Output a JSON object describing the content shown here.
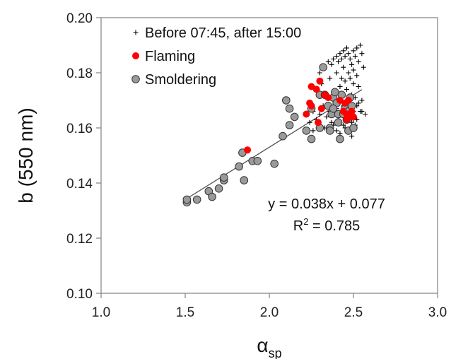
{
  "chart_data": {
    "type": "scatter",
    "title": "",
    "xlabel": "α",
    "xlabel_sub": "sp",
    "ylabel": "b (550 nm)",
    "xlim": [
      1.0,
      3.0
    ],
    "ylim": [
      0.1,
      0.2
    ],
    "xticks": [
      "1.0",
      "1.5",
      "2.0",
      "2.5",
      "3.0"
    ],
    "yticks": [
      "0.10",
      "0.12",
      "0.14",
      "0.16",
      "0.18",
      "0.20"
    ],
    "grid": false,
    "legend_position": "top-left",
    "fit": {
      "slope": 0.038,
      "intercept": 0.077,
      "x_range": [
        1.5,
        2.55
      ],
      "equation": "y = 0.038x + 0.077",
      "r2_label": "R",
      "r2_sup": "2",
      "r2_value": " = 0.785"
    },
    "series": [
      {
        "name": "Before 07:45, after 15:00",
        "marker": "plus",
        "color": "#000000",
        "points": [
          [
            2.3,
            0.18
          ],
          [
            2.33,
            0.182
          ],
          [
            2.35,
            0.184
          ],
          [
            2.37,
            0.183
          ],
          [
            2.38,
            0.185
          ],
          [
            2.4,
            0.186
          ],
          [
            2.41,
            0.184
          ],
          [
            2.42,
            0.187
          ],
          [
            2.43,
            0.185
          ],
          [
            2.44,
            0.188
          ],
          [
            2.45,
            0.186
          ],
          [
            2.46,
            0.189
          ],
          [
            2.47,
            0.187
          ],
          [
            2.48,
            0.185
          ],
          [
            2.49,
            0.183
          ],
          [
            2.5,
            0.188
          ],
          [
            2.51,
            0.186
          ],
          [
            2.52,
            0.189
          ],
          [
            2.53,
            0.184
          ],
          [
            2.54,
            0.19
          ],
          [
            2.56,
            0.182
          ],
          [
            2.55,
            0.187
          ],
          [
            2.44,
            0.182
          ],
          [
            2.47,
            0.18
          ],
          [
            2.5,
            0.181
          ],
          [
            2.52,
            0.179
          ],
          [
            2.48,
            0.178
          ],
          [
            2.45,
            0.177
          ],
          [
            2.5,
            0.176
          ],
          [
            2.42,
            0.175
          ],
          [
            2.53,
            0.175
          ],
          [
            2.46,
            0.174
          ],
          [
            2.49,
            0.172
          ],
          [
            2.51,
            0.171
          ],
          [
            2.43,
            0.171
          ],
          [
            2.55,
            0.17
          ],
          [
            2.47,
            0.169
          ],
          [
            2.52,
            0.168
          ],
          [
            2.44,
            0.168
          ],
          [
            2.4,
            0.167
          ],
          [
            2.5,
            0.166
          ],
          [
            2.54,
            0.166
          ],
          [
            2.57,
            0.165
          ],
          [
            2.46,
            0.165
          ],
          [
            2.48,
            0.164
          ],
          [
            2.41,
            0.163
          ],
          [
            2.49,
            0.162
          ],
          [
            2.51,
            0.161
          ],
          [
            2.45,
            0.16
          ],
          [
            2.38,
            0.161
          ],
          [
            2.47,
            0.159
          ],
          [
            2.49,
            0.157
          ],
          [
            2.42,
            0.158
          ],
          [
            2.5,
            0.163
          ],
          [
            2.36,
            0.166
          ],
          [
            2.34,
            0.164
          ],
          [
            2.38,
            0.17
          ],
          [
            2.39,
            0.173
          ],
          [
            2.35,
            0.171
          ],
          [
            2.32,
            0.168
          ],
          [
            2.3,
            0.165
          ],
          [
            2.28,
            0.163
          ],
          [
            2.26,
            0.166
          ],
          [
            2.24,
            0.162
          ],
          [
            2.22,
            0.165
          ],
          [
            2.29,
            0.172
          ],
          [
            2.31,
            0.176
          ],
          [
            2.36,
            0.178
          ],
          [
            2.4,
            0.18
          ],
          [
            2.43,
            0.178
          ],
          [
            2.53,
            0.169
          ],
          [
            2.55,
            0.166
          ],
          [
            2.52,
            0.163
          ],
          [
            2.44,
            0.161
          ],
          [
            2.4,
            0.159
          ],
          [
            2.37,
            0.162
          ],
          [
            2.33,
            0.16
          ],
          [
            2.26,
            0.159
          ]
        ]
      },
      {
        "name": "Flaming",
        "marker": "circle",
        "color": "#ff0000",
        "points": [
          [
            1.87,
            0.152
          ],
          [
            2.22,
            0.165
          ],
          [
            2.24,
            0.169
          ],
          [
            2.25,
            0.168
          ],
          [
            2.25,
            0.175
          ],
          [
            2.28,
            0.174
          ],
          [
            2.3,
            0.177
          ],
          [
            2.31,
            0.167
          ],
          [
            2.33,
            0.172
          ],
          [
            2.35,
            0.171
          ],
          [
            2.42,
            0.17
          ],
          [
            2.44,
            0.166
          ],
          [
            2.45,
            0.169
          ],
          [
            2.46,
            0.165
          ],
          [
            2.46,
            0.163
          ],
          [
            2.47,
            0.17
          ],
          [
            2.48,
            0.164
          ],
          [
            2.49,
            0.166
          ],
          [
            2.5,
            0.164
          ],
          [
            2.29,
            0.162
          ]
        ]
      },
      {
        "name": "Smoldering",
        "marker": "circle",
        "color": "#9a9a9a",
        "points": [
          [
            1.51,
            0.133
          ],
          [
            1.51,
            0.134
          ],
          [
            1.57,
            0.134
          ],
          [
            1.64,
            0.137
          ],
          [
            1.66,
            0.135
          ],
          [
            1.7,
            0.138
          ],
          [
            1.73,
            0.141
          ],
          [
            1.73,
            0.142
          ],
          [
            1.82,
            0.146
          ],
          [
            1.84,
            0.151
          ],
          [
            1.85,
            0.141
          ],
          [
            1.9,
            0.148
          ],
          [
            1.93,
            0.148
          ],
          [
            2.03,
            0.147
          ],
          [
            2.08,
            0.157
          ],
          [
            2.1,
            0.17
          ],
          [
            2.12,
            0.167
          ],
          [
            2.12,
            0.161
          ],
          [
            2.15,
            0.164
          ],
          [
            2.22,
            0.159
          ],
          [
            2.25,
            0.156
          ],
          [
            2.25,
            0.167
          ],
          [
            2.3,
            0.16
          ],
          [
            2.3,
            0.172
          ],
          [
            2.32,
            0.182
          ],
          [
            2.33,
            0.172
          ],
          [
            2.35,
            0.168
          ],
          [
            2.36,
            0.16
          ],
          [
            2.37,
            0.165
          ],
          [
            2.38,
            0.171
          ],
          [
            2.39,
            0.173
          ],
          [
            2.4,
            0.169
          ],
          [
            2.41,
            0.165
          ],
          [
            2.41,
            0.162
          ],
          [
            2.42,
            0.156
          ],
          [
            2.43,
            0.172
          ],
          [
            2.44,
            0.165
          ],
          [
            2.45,
            0.167
          ],
          [
            2.46,
            0.163
          ],
          [
            2.47,
            0.159
          ],
          [
            2.47,
            0.166
          ],
          [
            2.48,
            0.171
          ],
          [
            2.49,
            0.168
          ],
          [
            2.5,
            0.16
          ],
          [
            2.36,
            0.159
          ],
          [
            2.38,
            0.167
          ]
        ]
      }
    ]
  }
}
